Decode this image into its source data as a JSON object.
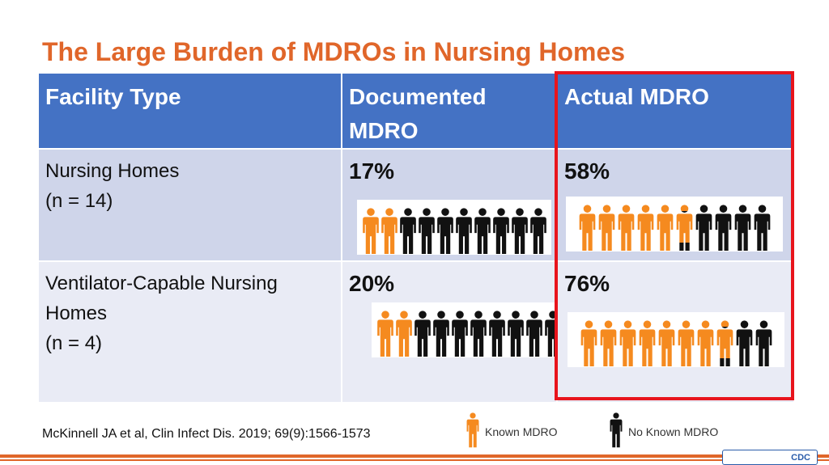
{
  "title": "The Large Burden of MDROs in Nursing Homes",
  "table": {
    "headers": [
      "Facility Type",
      "Documented MDRO",
      "Actual MDRO"
    ],
    "rows": [
      {
        "facility_line1": "Nursing Homes",
        "facility_line2": "",
        "facility_n": "(n = 14)",
        "documented": "17%",
        "actual": "58%",
        "documented_people": {
          "known": 2,
          "total": 10
        },
        "actual_people": {
          "known": 5.5,
          "total": 10
        }
      },
      {
        "facility_line1": "Ventilator-Capable Nursing",
        "facility_line2": "Homes",
        "facility_n": "(n = 4)",
        "documented": "20%",
        "actual": "76%",
        "documented_people": {
          "known": 2,
          "total": 10
        },
        "actual_people": {
          "known": 7.5,
          "total": 10
        }
      }
    ]
  },
  "citation": "McKinnell JA et al, Clin Infect Dis. 2019;  69(9):1566-1573",
  "legend": [
    {
      "label": "Known MDRO",
      "color": "#f58a1f"
    },
    {
      "label": "No Known MDRO",
      "color": "#111111"
    }
  ],
  "logo_text": "CDC",
  "colors": {
    "accent": "#e0662a",
    "header": "#4472c4",
    "highlight": "#e8141c",
    "known": "#f58a1f",
    "unknown": "#111111"
  }
}
